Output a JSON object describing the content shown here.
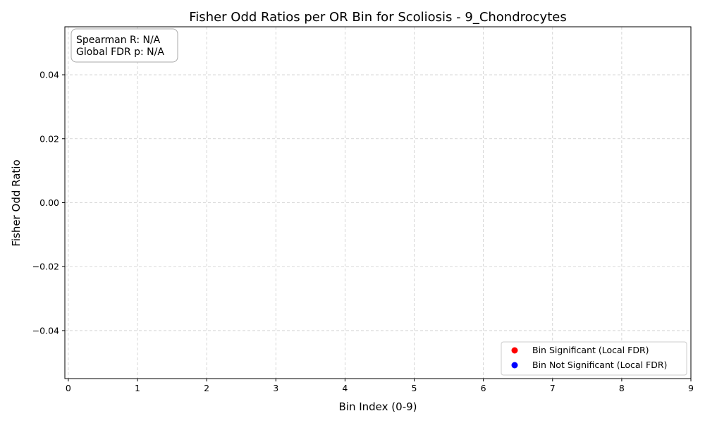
{
  "chart_data": {
    "type": "scatter",
    "title": "Fisher Odd Ratios per OR Bin for Scoliosis - 9_Chondrocytes",
    "xlabel": "Bin Index (0-9)",
    "ylabel": "Fisher Odd Ratio",
    "xlim": [
      -0.05,
      9
    ],
    "ylim": [
      -0.055,
      0.055
    ],
    "x_ticks": [
      0,
      1,
      2,
      3,
      4,
      5,
      6,
      7,
      8,
      9
    ],
    "y_ticks": [
      -0.04,
      -0.02,
      0.0,
      0.02,
      0.04
    ],
    "y_tick_labels": [
      "−0.04",
      "−0.02",
      "0.00",
      "0.02",
      "0.04"
    ],
    "grid": true,
    "legend_position": "lower-right",
    "series": [
      {
        "name": "Bin Significant (Local FDR)",
        "color": "#ff0000",
        "x": [],
        "y": []
      },
      {
        "name": "Bin Not Significant (Local FDR)",
        "color": "#0000ff",
        "x": [],
        "y": []
      }
    ],
    "annotation": {
      "spearman": "Spearman R: N/A",
      "global_fdr": "Global FDR p: N/A"
    }
  }
}
